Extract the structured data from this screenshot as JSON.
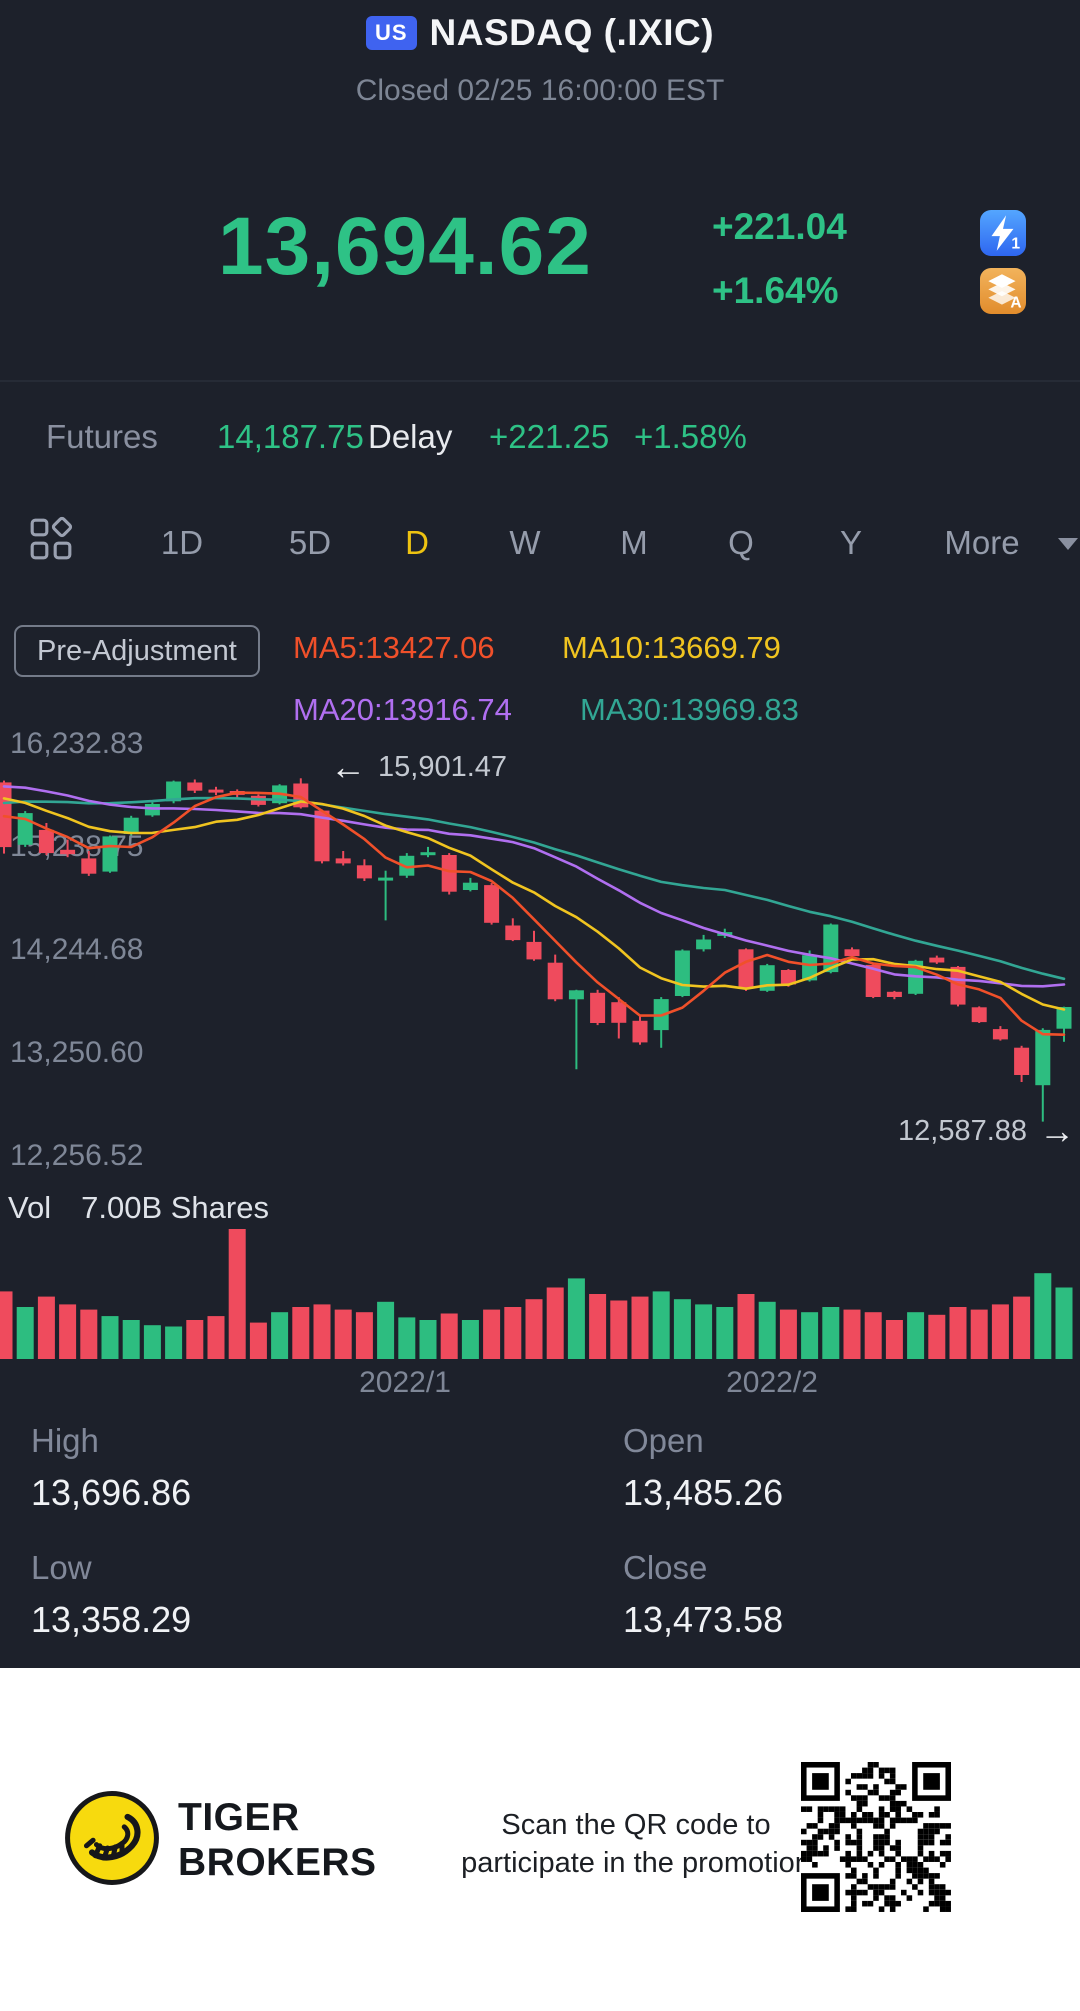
{
  "header": {
    "market_badge": "US",
    "title": "NASDAQ (.IXIC)",
    "status": "Closed 02/25 16:00:00 EST"
  },
  "quote": {
    "price": "13,694.62",
    "change": "+221.04",
    "change_pct": "+1.64%"
  },
  "header_icons": {
    "flash_badge": "1",
    "layers_badge": "A"
  },
  "futures": {
    "label": "Futures",
    "price": "14,187.75",
    "delay_label": "Delay",
    "change": "+221.25",
    "change_pct": "+1.58%"
  },
  "toolbar": {
    "tabs": [
      "1D",
      "5D",
      "D",
      "W",
      "M",
      "Q",
      "Y",
      "More"
    ],
    "active": "D"
  },
  "indicators": {
    "adjustment_label": "Pre-Adjustment",
    "ma5": {
      "label": "MA5:13427.06",
      "color": "#f0502a"
    },
    "ma10": {
      "label": "MA10:13669.79",
      "color": "#f0c420"
    },
    "ma20": {
      "label": "MA20:13916.74",
      "color": "#b06ff0"
    },
    "ma30": {
      "label": "MA30:13969.83",
      "color": "#32a694"
    }
  },
  "annotations": {
    "high_label": "15,901.47",
    "low_label": "12,587.88"
  },
  "volume_header": {
    "label": "Vol",
    "value": "7.00B Shares"
  },
  "stats": [
    {
      "label": "High",
      "value": "13,696.86"
    },
    {
      "label": "Open",
      "value": "13,485.26"
    },
    {
      "label": "Low",
      "value": "13,358.29"
    },
    {
      "label": "Close",
      "value": "13,473.58"
    }
  ],
  "footer": {
    "brand_line1": "TIGER",
    "brand_line2": "BROKERS",
    "promo_line1": "Scan the QR code to",
    "promo_line2": "participate in the promotion"
  },
  "chart_data": {
    "type": "candlestick",
    "title": "NASDAQ Composite daily candles with MA5/10/20/30 and volume",
    "ylim": [
      12072.7,
      16483.8
    ],
    "y_tick_labels": [
      "16,232.83",
      "15,238.75",
      "14,244.68",
      "13,250.60",
      "12,256.52"
    ],
    "y_tick_values": [
      16232.83,
      15238.75,
      14244.68,
      13250.6,
      12256.52
    ],
    "x_tick_labels": [
      "2022/1",
      "2022/2"
    ],
    "up_color": "#2dbd80",
    "down_color": "#ef4b5d",
    "ma_colors": {
      "ma5": "#f0502a",
      "ma10": "#f0c420",
      "ma20": "#b06ff0",
      "ma30": "#32a694"
    },
    "high_annotation_value": 15901.47,
    "low_annotation_value": 12587.88,
    "dates": [
      "12/14",
      "12/15",
      "12/16",
      "12/17",
      "12/20",
      "12/21",
      "12/22",
      "12/23",
      "12/27",
      "12/28",
      "12/29",
      "12/30",
      "12/31",
      "01/03",
      "01/04",
      "01/05",
      "01/06",
      "01/07",
      "01/10",
      "01/11",
      "01/12",
      "01/13",
      "01/14",
      "01/18",
      "01/19",
      "01/20",
      "01/21",
      "01/24",
      "01/25",
      "01/26",
      "01/27",
      "01/28",
      "01/31",
      "02/01",
      "02/02",
      "02/03",
      "02/04",
      "02/07",
      "02/08",
      "02/09",
      "02/10",
      "02/11",
      "02/14",
      "02/15",
      "02/16",
      "02/17",
      "02/18",
      "02/22",
      "02/23",
      "02/24",
      "02/25"
    ],
    "open": [
      15862,
      15260,
      15404,
      15212,
      15129,
      15001,
      15365,
      15543,
      15680,
      15861,
      15793,
      15779,
      15733,
      15661,
      15852,
      15590,
      15129,
      15062,
      14921,
      14961,
      15171,
      15161,
      14823,
      14871,
      14481,
      14323,
      14122,
      13768,
      13831,
      13741,
      13561,
      13471,
      13801,
      14251,
      14381,
      14251,
      13851,
      14051,
      13951,
      14031,
      14251,
      14101,
      13841,
      13821,
      14171,
      14081,
      13691,
      13481,
      13301,
      12940,
      13485.26
    ],
    "high": [
      15880,
      15585,
      15470,
      15310,
      15200,
      15350,
      15540,
      15670,
      15880,
      15890,
      15820,
      15795,
      15745,
      15845,
      15901.47,
      15600,
      15200,
      15120,
      15010,
      15180,
      15240,
      15180,
      14940,
      14890,
      14550,
      14430,
      14200,
      13860,
      13860,
      13790,
      13620,
      13790,
      14250,
      14390,
      14450,
      14260,
      14110,
      14060,
      14240,
      14500,
      14270,
      14120,
      13850,
      14150,
      14190,
      14090,
      13700,
      13510,
      13320,
      13490,
      13696.86
    ],
    "low": [
      15175,
      15240,
      15160,
      15140,
      14960,
      14990,
      15350,
      15530,
      15660,
      15760,
      15740,
      15710,
      15630,
      15650,
      15610,
      15080,
      15060,
      14910,
      14530,
      14940,
      15140,
      14780,
      14810,
      14490,
      14330,
      14140,
      13750,
      13094,
      13520,
      13390,
      13330,
      13300,
      13790,
      14230,
      14360,
      13850,
      13840,
      13890,
      13940,
      14020,
      14170,
      13780,
      13770,
      13810,
      14110,
      13700,
      13540,
      13370,
      12970,
      12587.88,
      13358.29
    ],
    "close": [
      15237.64,
      15565.58,
      15180.43,
      15169.68,
      14980.94,
      15341.09,
      15521.89,
      15653.37,
      15871.26,
      15781.72,
      15766.22,
      15741.56,
      15644.97,
      15832.8,
      15622.72,
      15100.17,
      15080.86,
      14935.9,
      14942.83,
      15153.45,
      15188.39,
      14806.81,
      14893.75,
      14506.9,
      14340.26,
      14154.02,
      13768.92,
      13855.13,
      13539.29,
      13542.12,
      13352.78,
      13770.57,
      14239.88,
      14346.0,
      14417.55,
      13878.82,
      14098.01,
      13911.1,
      14194.45,
      14490.37,
      14185.64,
      13791.15,
      13790.92,
      14139.76,
      14124.09,
      13716.72,
      13548.07,
      13381.52,
      13037.49,
      13473.58,
      13694.62
    ],
    "volume_rel": [
      0.52,
      0.4,
      0.48,
      0.42,
      0.38,
      0.33,
      0.3,
      0.26,
      0.25,
      0.3,
      0.33,
      1.0,
      0.28,
      0.36,
      0.4,
      0.42,
      0.38,
      0.36,
      0.44,
      0.32,
      0.3,
      0.35,
      0.3,
      0.38,
      0.4,
      0.46,
      0.55,
      0.62,
      0.5,
      0.45,
      0.48,
      0.52,
      0.46,
      0.42,
      0.4,
      0.5,
      0.44,
      0.38,
      0.36,
      0.4,
      0.38,
      0.36,
      0.3,
      0.36,
      0.34,
      0.4,
      0.38,
      0.42,
      0.48,
      0.66,
      0.55
    ],
    "ma_warmup_closes": [
      15100,
      15160,
      15220,
      15280,
      15340,
      15300,
      15260,
      15320,
      15380,
      15420,
      15750,
      15820,
      15900,
      15960,
      16020,
      16057,
      15990,
      15920,
      15860,
      15910,
      15960,
      16000,
      15940,
      15880,
      15820,
      15760,
      15700,
      15640,
      15580,
      15520
    ]
  }
}
